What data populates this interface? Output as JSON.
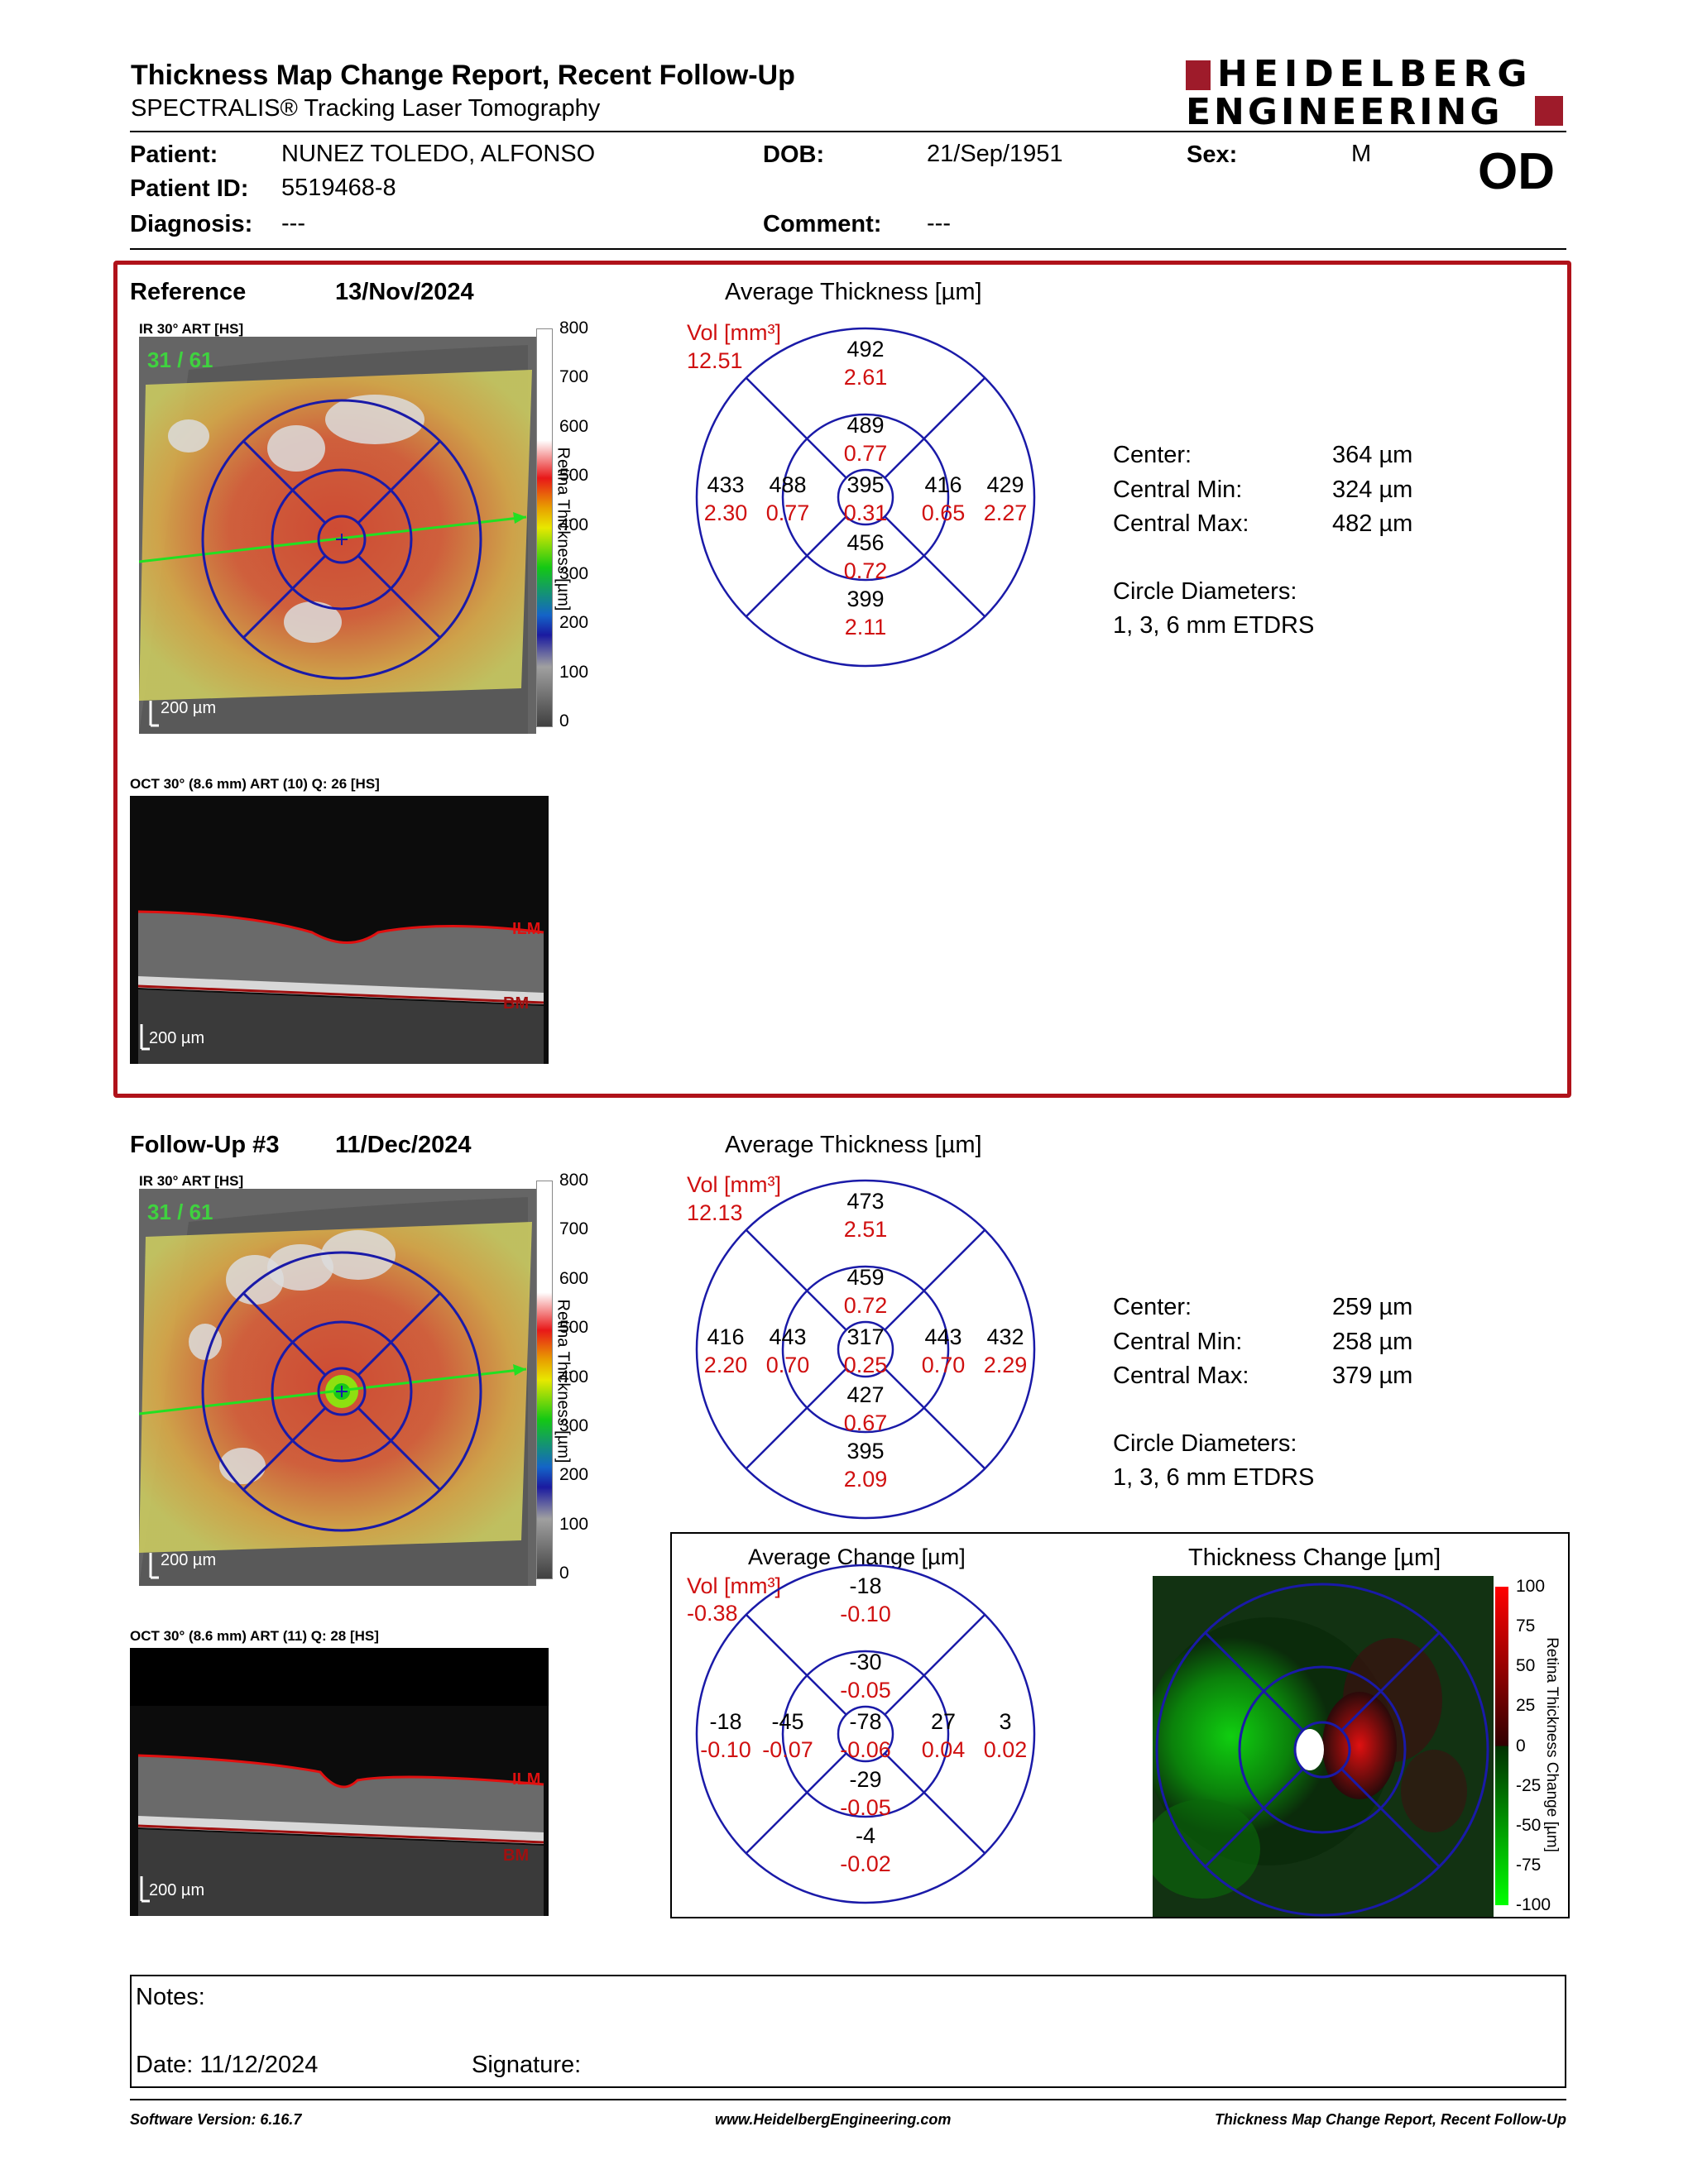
{
  "header": {
    "title": "Thickness Map Change Report, Recent Follow-Up",
    "subtitle": "SPECTRALIS® Tracking Laser Tomography",
    "logo_line1": "HEIDELBERG",
    "logo_line2": "ENGINEERING",
    "eye": "OD"
  },
  "patient": {
    "patient_label": "Patient:",
    "patient_value": "NUNEZ TOLEDO, ALFONSO",
    "id_label": "Patient ID:",
    "id_value": "5519468-8",
    "diagnosis_label": "Diagnosis:",
    "diagnosis_value": "---",
    "dob_label": "DOB:",
    "dob_value": "21/Sep/1951",
    "comment_label": "Comment:",
    "comment_value": "---",
    "sex_label": "Sex:",
    "sex_value": "M"
  },
  "reference": {
    "label": "Reference",
    "date": "13/Nov/2024",
    "ir_label": "IR 30° ART [HS]",
    "frame": "31 / 61",
    "scale": "200 µm",
    "oct_label": "OCT 30° (8.6 mm) ART (10) Q: 26 [HS]",
    "oct_scale": "200 µm",
    "ilm": "ILM",
    "bm": "BM",
    "colorbar_ticks": [
      "800",
      "700",
      "600",
      "500",
      "400",
      "300",
      "200",
      "100",
      "0"
    ],
    "colorbar_title": "Retina Thickness [µm]",
    "avg_title": "Average Thickness [µm]",
    "vol_label": "Vol [mm³]",
    "vol_total": "12.51",
    "etdrs": {
      "outer_sup": [
        "492",
        "2.61"
      ],
      "inner_sup": [
        "489",
        "0.77"
      ],
      "center": [
        "395",
        "0.31"
      ],
      "inner_nas": [
        "416",
        "0.65"
      ],
      "outer_nas": [
        "429",
        "2.27"
      ],
      "inner_tmp": [
        "488",
        "0.77"
      ],
      "outer_tmp": [
        "433",
        "2.30"
      ],
      "inner_inf": [
        "456",
        "0.72"
      ],
      "outer_inf": [
        "399",
        "2.11"
      ]
    },
    "stats": {
      "center_label": "Center:",
      "center_value": "364 µm",
      "min_label": "Central Min:",
      "min_value": "324 µm",
      "max_label": "Central Max:",
      "max_value": "482 µm",
      "diam_label": "Circle Diameters:",
      "diam_value": "1, 3, 6 mm ETDRS"
    }
  },
  "followup": {
    "label": "Follow-Up #3",
    "date": "11/Dec/2024",
    "ir_label": "IR 30° ART [HS]",
    "frame": "31 / 61",
    "scale": "200 µm",
    "oct_label": "OCT 30° (8.6 mm) ART (11) Q: 28 [HS]",
    "oct_scale": "200 µm",
    "ilm": "ILM",
    "bm": "BM",
    "colorbar_ticks": [
      "800",
      "700",
      "600",
      "500",
      "400",
      "300",
      "200",
      "100",
      "0"
    ],
    "colorbar_title": "Retina Thickness [µm]",
    "avg_title": "Average Thickness [µm]",
    "vol_label": "Vol [mm³]",
    "vol_total": "12.13",
    "etdrs": {
      "outer_sup": [
        "473",
        "2.51"
      ],
      "inner_sup": [
        "459",
        "0.72"
      ],
      "center": [
        "317",
        "0.25"
      ],
      "inner_nas": [
        "443",
        "0.70"
      ],
      "outer_nas": [
        "432",
        "2.29"
      ],
      "inner_tmp": [
        "443",
        "0.70"
      ],
      "outer_tmp": [
        "416",
        "2.20"
      ],
      "inner_inf": [
        "427",
        "0.67"
      ],
      "outer_inf": [
        "395",
        "2.09"
      ]
    },
    "stats": {
      "center_label": "Center:",
      "center_value": "259 µm",
      "min_label": "Central Min:",
      "min_value": "258 µm",
      "max_label": "Central Max:",
      "max_value": "379 µm",
      "diam_label": "Circle Diameters:",
      "diam_value": "1, 3, 6 mm ETDRS"
    }
  },
  "change": {
    "avg_title": "Average Change [µm]",
    "vol_label": "Vol [mm³]",
    "vol_total": "-0.38",
    "etdrs": {
      "outer_sup": [
        "-18",
        "-0.10"
      ],
      "inner_sup": [
        "-30",
        "-0.05"
      ],
      "center": [
        "-78",
        "-0.06"
      ],
      "inner_nas": [
        "27",
        "0.04"
      ],
      "outer_nas": [
        "3",
        "0.02"
      ],
      "inner_tmp": [
        "-45",
        "-0.07"
      ],
      "outer_tmp": [
        "-18",
        "-0.10"
      ],
      "inner_inf": [
        "-29",
        "-0.05"
      ],
      "outer_inf": [
        "-4",
        "-0.02"
      ]
    },
    "map_title": "Thickness Change [µm]",
    "colorbar_ticks": [
      "100",
      "75",
      "50",
      "25",
      "0",
      "-25",
      "-50",
      "-75",
      "-100"
    ],
    "colorbar_title": "Retina Thickness Change [µm]"
  },
  "notes": {
    "notes_label": "Notes:",
    "date_label": "Date: 11/12/2024",
    "signature_label": "Signature:"
  },
  "footer": {
    "software": "Software Version: 6.16.7",
    "website": "www.HeidelbergEngineering.com",
    "report": "Thickness Map Change Report, Recent Follow-Up"
  },
  "colors": {
    "accent_red": "#b0121a",
    "grid_blue": "#1a1aa8",
    "value_red": "#d01010"
  }
}
